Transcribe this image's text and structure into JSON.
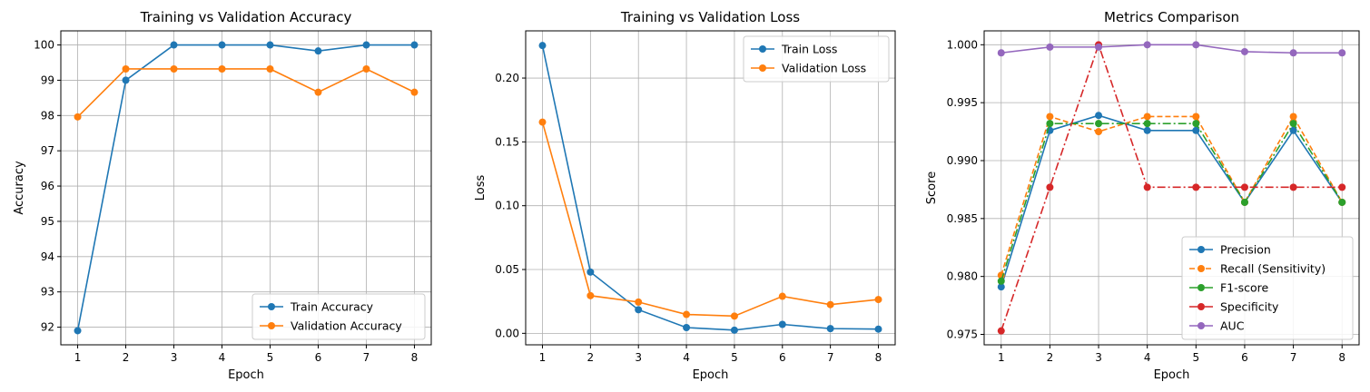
{
  "chart_data": [
    {
      "type": "line",
      "title": "Training vs Validation Accuracy",
      "xlabel": "Epoch",
      "ylabel": "Accuracy",
      "x": [
        1,
        2,
        3,
        4,
        5,
        6,
        7,
        8
      ],
      "xticks": [
        "1",
        "2",
        "3",
        "4",
        "5",
        "6",
        "7",
        "8"
      ],
      "yticks": [
        "92",
        "93",
        "94",
        "95",
        "96",
        "97",
        "98",
        "99",
        "100"
      ],
      "xlim": [
        0.65,
        8.35
      ],
      "ylim": [
        91.5,
        100.4
      ],
      "grid": true,
      "legend_position": "lower-right",
      "series": [
        {
          "name": "Train Accuracy",
          "color": "#1f77b4",
          "linestyle": "solid",
          "values": [
            91.9,
            99.0,
            100.0,
            100.0,
            100.0,
            99.83,
            100.0,
            100.0
          ]
        },
        {
          "name": "Validation Accuracy",
          "color": "#ff7f0e",
          "linestyle": "solid",
          "values": [
            97.96,
            99.32,
            99.32,
            99.32,
            99.32,
            98.66,
            99.32,
            98.66
          ]
        }
      ]
    },
    {
      "type": "line",
      "title": "Training vs Validation Loss",
      "xlabel": "Epoch",
      "ylabel": "Loss",
      "x": [
        1,
        2,
        3,
        4,
        5,
        6,
        7,
        8
      ],
      "xticks": [
        "1",
        "2",
        "3",
        "4",
        "5",
        "6",
        "7",
        "8"
      ],
      "yticks": [
        "0.00",
        "0.05",
        "0.10",
        "0.15",
        "0.20"
      ],
      "xlim": [
        0.65,
        8.35
      ],
      "ylim": [
        -0.009,
        0.237
      ],
      "grid": true,
      "legend_position": "upper-right",
      "series": [
        {
          "name": "Train Loss",
          "color": "#1f77b4",
          "linestyle": "solid",
          "values": [
            0.2255,
            0.048,
            0.0185,
            0.0045,
            0.0025,
            0.007,
            0.0037,
            0.0033
          ]
        },
        {
          "name": "Validation Loss",
          "color": "#ff7f0e",
          "linestyle": "solid",
          "values": [
            0.1655,
            0.0295,
            0.0245,
            0.0148,
            0.0135,
            0.029,
            0.0225,
            0.0265
          ]
        }
      ]
    },
    {
      "type": "line",
      "title": "Metrics Comparison",
      "xlabel": "Epoch",
      "ylabel": "Score",
      "x": [
        1,
        2,
        3,
        4,
        5,
        6,
        7,
        8
      ],
      "xticks": [
        "1",
        "2",
        "3",
        "4",
        "5",
        "6",
        "7",
        "8"
      ],
      "yticks": [
        "0.975",
        "0.980",
        "0.985",
        "0.990",
        "0.995",
        "1.000"
      ],
      "xlim": [
        0.65,
        8.35
      ],
      "ylim": [
        0.9741,
        1.0012
      ],
      "grid": true,
      "legend_position": "lower-right",
      "series": [
        {
          "name": "Precision",
          "color": "#1f77b4",
          "linestyle": "solid",
          "values": [
            0.9791,
            0.9926,
            0.9939,
            0.9926,
            0.9926,
            0.9864,
            0.9926,
            0.9864
          ]
        },
        {
          "name": "Recall (Sensitivity)",
          "color": "#ff7f0e",
          "linestyle": "dashed",
          "values": [
            0.9801,
            0.9938,
            0.9925,
            0.9938,
            0.9938,
            0.9864,
            0.9938,
            0.9864
          ]
        },
        {
          "name": "F1-score",
          "color": "#2ca02c",
          "linestyle": "dashdot",
          "values": [
            0.9796,
            0.9932,
            0.9932,
            0.9932,
            0.9932,
            0.9864,
            0.9932,
            0.9864
          ]
        },
        {
          "name": "Specificity",
          "color": "#d62728",
          "linestyle": "dashdot",
          "values": [
            0.9753,
            0.9877,
            1.0,
            0.9877,
            0.9877,
            0.9877,
            0.9877,
            0.9877
          ]
        },
        {
          "name": "AUC",
          "color": "#9467bd",
          "linestyle": "solid",
          "values": [
            0.9993,
            0.9998,
            0.9998,
            1.0,
            1.0,
            0.9994,
            0.9993,
            0.9993
          ]
        }
      ]
    }
  ]
}
